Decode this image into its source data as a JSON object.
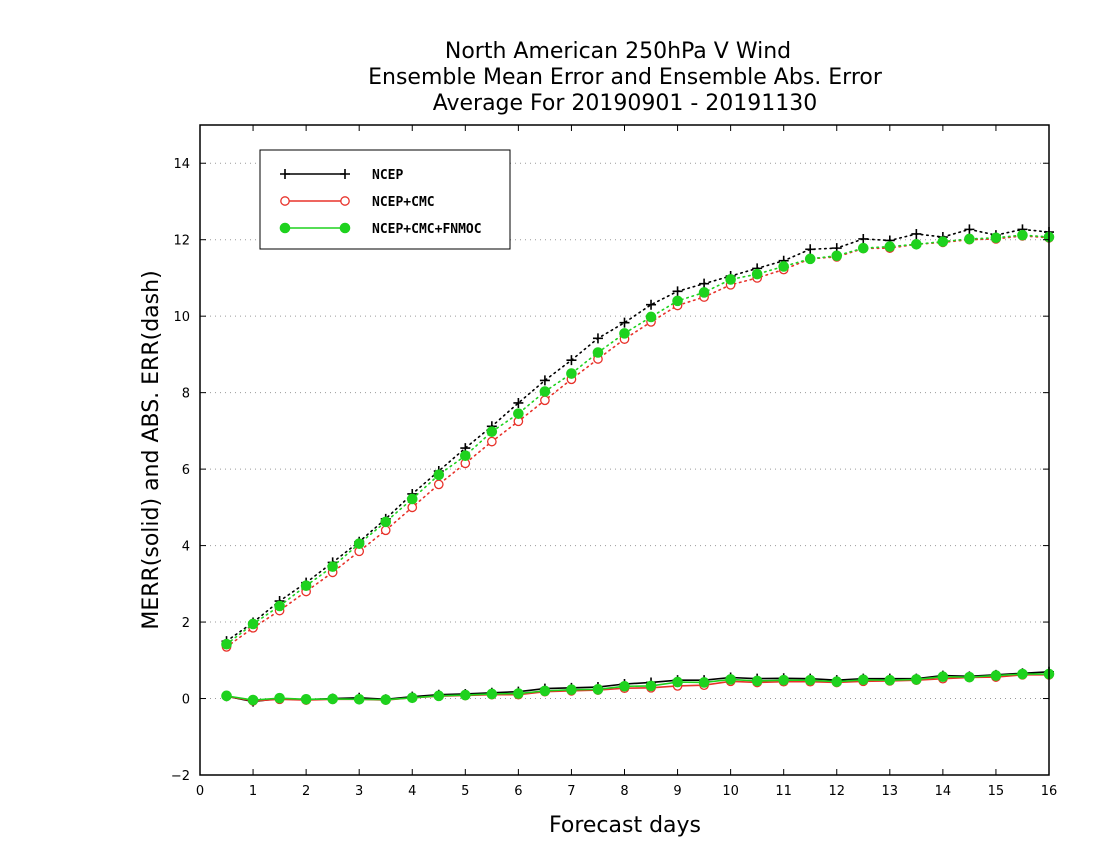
{
  "chart_data": {
    "type": "line",
    "title": [
      "North American 250hPa V Wind",
      "Ensemble Mean Error and Ensemble Abs. Error",
      "Average For 20190901 - 20191130"
    ],
    "xlabel": "Forecast days",
    "ylabel": "MERR(solid) and ABS. ERR(dash)",
    "xlim": [
      0,
      16
    ],
    "ylim": [
      -2,
      15
    ],
    "xticks": [
      0,
      1,
      2,
      3,
      4,
      5,
      6,
      7,
      8,
      9,
      10,
      11,
      12,
      13,
      14,
      15,
      16
    ],
    "xtick_labels": [
      "0",
      "1",
      "2",
      "3",
      "4",
      "5",
      "6",
      "7",
      "8",
      "9",
      "10",
      "11",
      "12",
      "13",
      "14",
      "15",
      "16"
    ],
    "yticks": [
      -2,
      0,
      2,
      4,
      6,
      8,
      10,
      12,
      14
    ],
    "ytick_labels": [
      "−2",
      "0",
      "2",
      "4",
      "6",
      "8",
      "10",
      "12",
      "14"
    ],
    "grid": "horizontal dotted",
    "legend_position": "top-left",
    "x": [
      0.5,
      1,
      1.5,
      2,
      2.5,
      3,
      3.5,
      4,
      4.5,
      5,
      5.5,
      6,
      6.5,
      7,
      7.5,
      8,
      8.5,
      9,
      9.5,
      10,
      10.5,
      11,
      11.5,
      12,
      12.5,
      13,
      13.5,
      14,
      14.5,
      15,
      15.5,
      16
    ],
    "series": [
      {
        "name": "NCEP",
        "color": "#000000",
        "marker": "plus",
        "merr": [
          0.06,
          -0.08,
          0.0,
          -0.03,
          0.0,
          0.02,
          -0.02,
          0.05,
          0.1,
          0.12,
          0.15,
          0.18,
          0.26,
          0.28,
          0.3,
          0.38,
          0.42,
          0.48,
          0.48,
          0.55,
          0.52,
          0.53,
          0.52,
          0.48,
          0.52,
          0.52,
          0.52,
          0.6,
          0.58,
          0.62,
          0.66,
          0.7
        ],
        "abs_err": [
          1.5,
          1.99,
          2.55,
          3.03,
          3.56,
          4.1,
          4.7,
          5.35,
          5.95,
          6.55,
          7.12,
          7.73,
          8.32,
          8.85,
          9.42,
          9.83,
          10.3,
          10.65,
          10.85,
          11.05,
          11.25,
          11.45,
          11.75,
          11.78,
          12.02,
          11.98,
          12.15,
          12.07,
          12.27,
          12.12,
          12.27,
          12.2
        ]
      },
      {
        "name": "NCEP+CMC",
        "color": "#e8322a",
        "marker": "open-circle",
        "merr": [
          0.06,
          -0.06,
          -0.02,
          -0.04,
          -0.02,
          -0.02,
          -0.04,
          0.02,
          0.06,
          0.08,
          0.1,
          0.1,
          0.18,
          0.2,
          0.22,
          0.27,
          0.28,
          0.33,
          0.35,
          0.45,
          0.42,
          0.44,
          0.44,
          0.42,
          0.45,
          0.46,
          0.48,
          0.52,
          0.55,
          0.56,
          0.62,
          0.62
        ],
        "abs_err": [
          1.35,
          1.85,
          2.3,
          2.8,
          3.3,
          3.85,
          4.4,
          5.0,
          5.6,
          6.15,
          6.72,
          7.25,
          7.8,
          8.35,
          8.88,
          9.4,
          9.85,
          10.28,
          10.5,
          10.82,
          11.0,
          11.22,
          11.5,
          11.55,
          11.77,
          11.78,
          11.88,
          11.93,
          12.0,
          12.02,
          12.1,
          12.05
        ]
      },
      {
        "name": "NCEP+CMC+FNMOC",
        "color": "#1ed21e",
        "marker": "filled-circle",
        "merr": [
          0.07,
          -0.04,
          0.01,
          -0.02,
          -0.01,
          -0.02,
          -0.03,
          0.02,
          0.07,
          0.09,
          0.12,
          0.13,
          0.2,
          0.23,
          0.24,
          0.32,
          0.33,
          0.43,
          0.42,
          0.5,
          0.46,
          0.48,
          0.48,
          0.44,
          0.49,
          0.48,
          0.5,
          0.57,
          0.56,
          0.6,
          0.64,
          0.64
        ],
        "abs_err": [
          1.42,
          1.95,
          2.42,
          2.95,
          3.45,
          4.05,
          4.62,
          5.22,
          5.85,
          6.35,
          6.98,
          7.45,
          8.03,
          8.5,
          9.05,
          9.55,
          9.98,
          10.4,
          10.62,
          10.96,
          11.1,
          11.3,
          11.5,
          11.58,
          11.78,
          11.82,
          11.88,
          11.95,
          12.02,
          12.05,
          12.12,
          12.07
        ]
      }
    ]
  }
}
